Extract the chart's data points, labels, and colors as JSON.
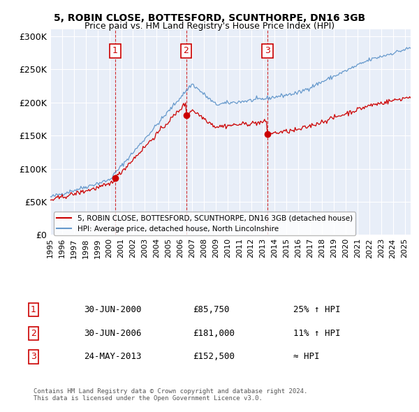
{
  "title": "5, ROBIN CLOSE, BOTTESFORD, SCUNTHORPE, DN16 3GB",
  "subtitle": "Price paid vs. HM Land Registry's House Price Index (HPI)",
  "ylabel_ticks": [
    "£0",
    "£50K",
    "£100K",
    "£150K",
    "£200K",
    "£250K",
    "£300K"
  ],
  "ytick_values": [
    0,
    50000,
    100000,
    150000,
    200000,
    250000,
    300000
  ],
  "ylim": [
    0,
    310000
  ],
  "xlim_start": 1995.0,
  "xlim_end": 2025.5,
  "sale_color": "#cc0000",
  "hpi_color": "#6699cc",
  "vline_color": "#cc0000",
  "transactions": [
    {
      "num": 1,
      "date_x": 2000.5,
      "price": 85750,
      "label": "30-JUN-2000",
      "price_str": "£85,750",
      "rel": "25% ↑ HPI"
    },
    {
      "num": 2,
      "date_x": 2006.5,
      "price": 181000,
      "label": "30-JUN-2006",
      "price_str": "£181,000",
      "rel": "11% ↑ HPI"
    },
    {
      "num": 3,
      "date_x": 2013.38,
      "price": 152500,
      "label": "24-MAY-2013",
      "price_str": "£152,500",
      "rel": "≈ HPI"
    }
  ],
  "legend_sale_label": "5, ROBIN CLOSE, BOTTESFORD, SCUNTHORPE, DN16 3GB (detached house)",
  "legend_hpi_label": "HPI: Average price, detached house, North Lincolnshire",
  "footnote": "Contains HM Land Registry data © Crown copyright and database right 2024.\nThis data is licensed under the Open Government Licence v3.0.",
  "background_color": "#ffffff",
  "plot_bg_color": "#e8eef8",
  "grid_color": "#ffffff"
}
